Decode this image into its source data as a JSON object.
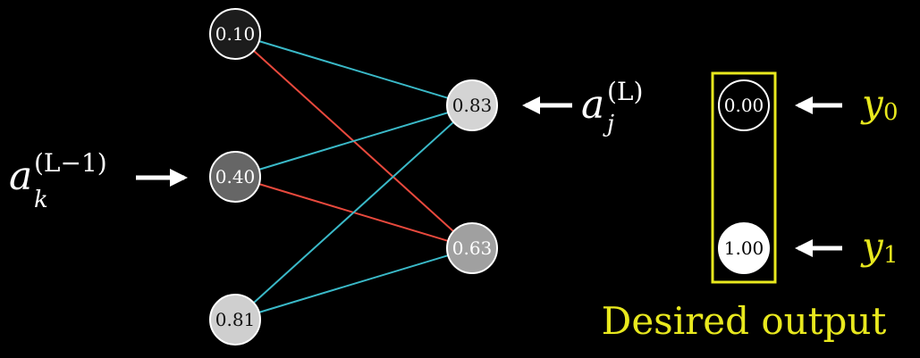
{
  "diagram": {
    "input_layer": [
      {
        "value": "0.10",
        "fill": "#1c1c1c",
        "text_color": "#ffffff"
      },
      {
        "value": "0.40",
        "fill": "#666666",
        "text_color": "#ffffff"
      },
      {
        "value": "0.81",
        "fill": "#cfcfcf",
        "text_color": "#111111"
      }
    ],
    "output_layer": [
      {
        "value": "0.83",
        "fill": "#d4d4d4",
        "text_color": "#111111"
      },
      {
        "value": "0.63",
        "fill": "#a0a0a0",
        "text_color": "#ffffff"
      }
    ],
    "desired_output": [
      {
        "value": "0.00",
        "fill": "#000000",
        "text_color": "#ffffff",
        "label": "y",
        "subscript": "0"
      },
      {
        "value": "1.00",
        "fill": "#ffffff",
        "text_color": "#000000",
        "label": "y",
        "subscript": "1"
      }
    ],
    "edges": [
      {
        "from": "in-0",
        "to": "out-0",
        "color": "#3ab9c8"
      },
      {
        "from": "in-0",
        "to": "out-1",
        "color": "#e8493d"
      },
      {
        "from": "in-1",
        "to": "out-0",
        "color": "#3ab9c8"
      },
      {
        "from": "in-1",
        "to": "out-1",
        "color": "#e8493d"
      },
      {
        "from": "in-2",
        "to": "out-0",
        "color": "#3ab9c8"
      },
      {
        "from": "in-2",
        "to": "out-1",
        "color": "#3ab9c8"
      }
    ],
    "label_prev_layer": {
      "base": "a",
      "superscript": "(L−1)",
      "subscript": "k"
    },
    "label_curr_layer": {
      "base": "a",
      "superscript": "(L)",
      "subscript": "j"
    },
    "desired_output_title": "Desired output",
    "colors": {
      "accent": "#e8e81e",
      "text": "#ffffff",
      "background": "#000000"
    }
  }
}
